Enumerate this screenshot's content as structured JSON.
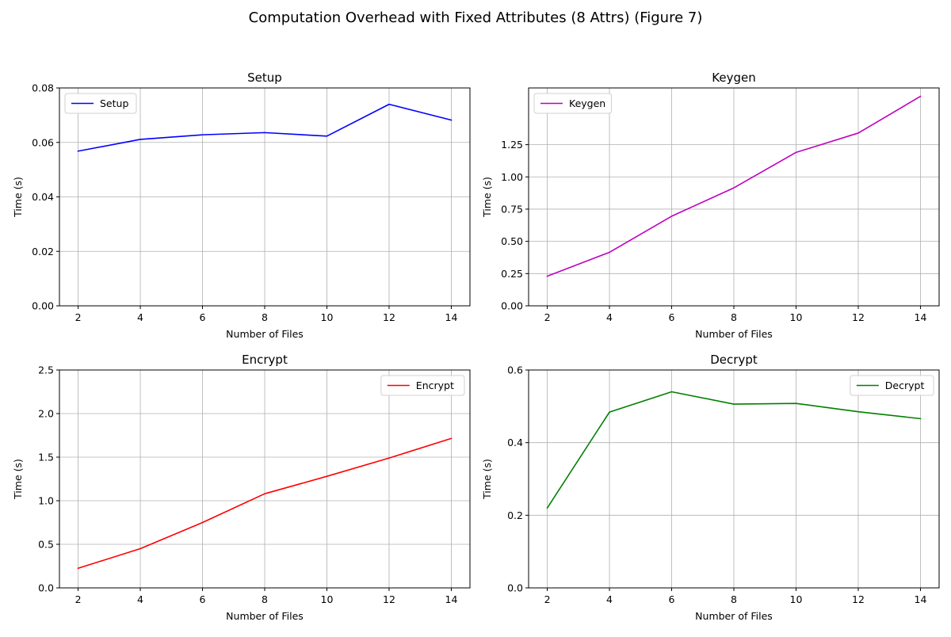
{
  "figure": {
    "suptitle": "Computation Overhead with Fixed Attributes (8 Attrs) (Figure 7)"
  },
  "chart_data": [
    {
      "type": "line",
      "title": "Setup",
      "xlabel": "Number of Files",
      "ylabel": "Time (s)",
      "x": [
        2,
        4,
        6,
        8,
        10,
        12,
        14
      ],
      "xticks": [
        2,
        4,
        6,
        8,
        10,
        12,
        14
      ],
      "xlim": [
        1.4,
        14.6
      ],
      "ylim": [
        0,
        0.08
      ],
      "yticks": [
        0,
        0.02,
        0.04,
        0.06,
        0.08
      ],
      "ytick_labels": [
        "0.00",
        "0.02",
        "0.04",
        "0.06",
        "0.08"
      ],
      "grid": true,
      "legend_position": "upper-left",
      "series": [
        {
          "name": "Setup",
          "color": "#0000ff",
          "values": [
            0.0568,
            0.0611,
            0.0628,
            0.0636,
            0.0623,
            0.074,
            0.0682
          ]
        }
      ]
    },
    {
      "type": "line",
      "title": "Keygen",
      "xlabel": "Number of Files",
      "ylabel": "Time (s)",
      "x": [
        2,
        4,
        6,
        8,
        10,
        12,
        14
      ],
      "xticks": [
        2,
        4,
        6,
        8,
        10,
        12,
        14
      ],
      "xlim": [
        1.4,
        14.6
      ],
      "ylim": [
        0,
        1.69
      ],
      "yticks": [
        0,
        0.25,
        0.5,
        0.75,
        1.0,
        1.25
      ],
      "ytick_labels": [
        "0.00",
        "0.25",
        "0.50",
        "0.75",
        "1.00",
        "1.25"
      ],
      "grid": true,
      "legend_position": "upper-left",
      "series": [
        {
          "name": "Keygen",
          "color": "#bf00bf",
          "values": [
            0.23,
            0.415,
            0.695,
            0.915,
            1.19,
            1.34,
            1.625
          ]
        }
      ]
    },
    {
      "type": "line",
      "title": "Encrypt",
      "xlabel": "Number of Files",
      "ylabel": "Time (s)",
      "x": [
        2,
        4,
        6,
        8,
        10,
        12,
        14
      ],
      "xticks": [
        2,
        4,
        6,
        8,
        10,
        12,
        14
      ],
      "xlim": [
        1.4,
        14.6
      ],
      "ylim": [
        0,
        2.5
      ],
      "yticks": [
        0,
        0.5,
        1.0,
        1.5,
        2.0,
        2.5
      ],
      "ytick_labels": [
        "0.0",
        "0.5",
        "1.0",
        "1.5",
        "2.0",
        "2.5"
      ],
      "grid": true,
      "legend_position": "upper-right",
      "series": [
        {
          "name": "Encrypt",
          "color": "#ff0000",
          "values": [
            0.225,
            0.45,
            0.75,
            1.08,
            1.28,
            1.49,
            1.715
          ]
        }
      ]
    },
    {
      "type": "line",
      "title": "Decrypt",
      "xlabel": "Number of Files",
      "ylabel": "Time (s)",
      "x": [
        2,
        4,
        6,
        8,
        10,
        12,
        14
      ],
      "xticks": [
        2,
        4,
        6,
        8,
        10,
        12,
        14
      ],
      "xlim": [
        1.4,
        14.6
      ],
      "ylim": [
        0,
        0.6
      ],
      "yticks": [
        0,
        0.2,
        0.4,
        0.6
      ],
      "ytick_labels": [
        "0.0",
        "0.2",
        "0.4",
        "0.6"
      ],
      "grid": true,
      "legend_position": "upper-right",
      "series": [
        {
          "name": "Decrypt",
          "color": "#008000",
          "values": [
            0.22,
            0.484,
            0.54,
            0.506,
            0.508,
            0.485,
            0.466
          ]
        }
      ]
    }
  ]
}
